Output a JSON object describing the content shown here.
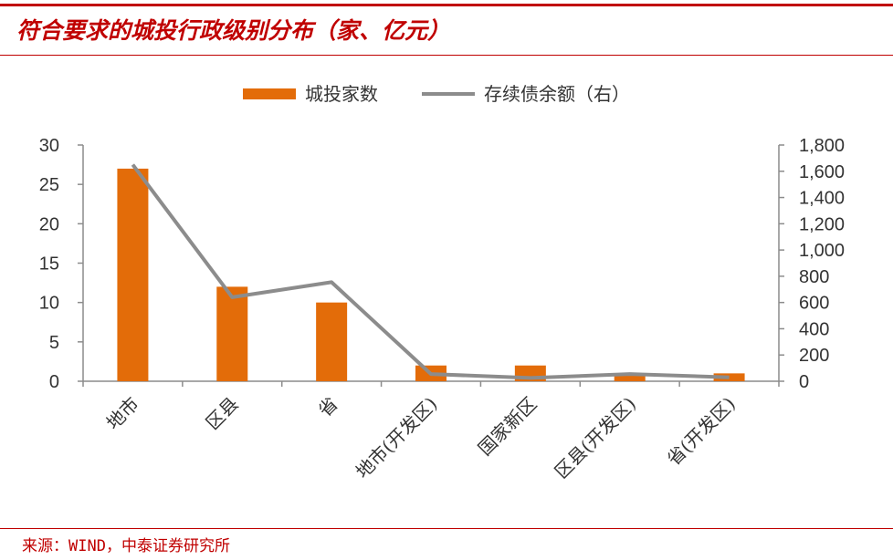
{
  "title": "符合要求的城投行政级别分布（家、亿元）",
  "source": "来源：WIND，中泰证券研究所",
  "colors": {
    "bar": "#e36c09",
    "line": "#8c8c8c",
    "accent": "#c00000"
  },
  "chart_data": {
    "type": "bar",
    "categories": [
      "地市",
      "区县",
      "省",
      "地市(开发区)",
      "国家新区",
      "区县(开发区)",
      "省(开发区)"
    ],
    "series": [
      {
        "name": "城投家数",
        "type": "bar",
        "axis": "left",
        "values": [
          27,
          12,
          10,
          2,
          2,
          1,
          1
        ]
      },
      {
        "name": "存续债余额（右）",
        "type": "line",
        "axis": "right",
        "values": [
          1650,
          640,
          755,
          55,
          25,
          55,
          30
        ]
      }
    ],
    "y_left": {
      "min": 0,
      "max": 30,
      "ticks": [
        "0",
        "5",
        "10",
        "15",
        "20",
        "25",
        "30"
      ]
    },
    "y_right": {
      "min": 0,
      "max": 1800,
      "ticks": [
        "0",
        "200",
        "400",
        "600",
        "800",
        "1,000",
        "1,200",
        "1,400",
        "1,600",
        "1,800"
      ]
    },
    "legend_position": "top",
    "grid": false
  }
}
